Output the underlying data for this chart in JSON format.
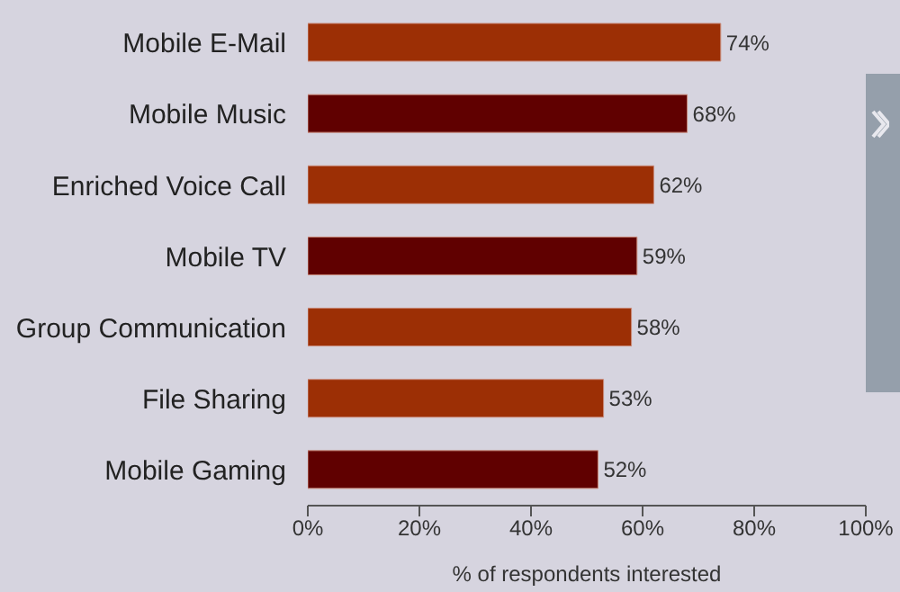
{
  "chart_data": {
    "type": "bar",
    "orientation": "horizontal",
    "xlabel": "% of respondents interested",
    "categories": [
      "Mobile E-Mail",
      "Mobile Music",
      "Enriched Voice Call",
      "Mobile TV",
      "Group Communication",
      "File Sharing",
      "Mobile Gaming"
    ],
    "values": [
      74,
      68,
      62,
      59,
      58,
      53,
      52
    ],
    "colors": [
      "#9c2f05",
      "#600000",
      "#9c2f05",
      "#600000",
      "#9c2f05",
      "#9c2f05",
      "#600000"
    ],
    "value_labels": [
      "74%",
      "68%",
      "62%",
      "59%",
      "58%",
      "53%",
      "52%"
    ],
    "xlim": [
      0,
      100
    ],
    "xticks": [
      {
        "value": 0,
        "label": "0%"
      },
      {
        "value": 20,
        "label": "20%"
      },
      {
        "value": 40,
        "label": "40%"
      },
      {
        "value": 60,
        "label": "60%"
      },
      {
        "value": 80,
        "label": "80%"
      },
      {
        "value": 100,
        "label": "100%"
      }
    ],
    "grid": false,
    "legend": false
  }
}
